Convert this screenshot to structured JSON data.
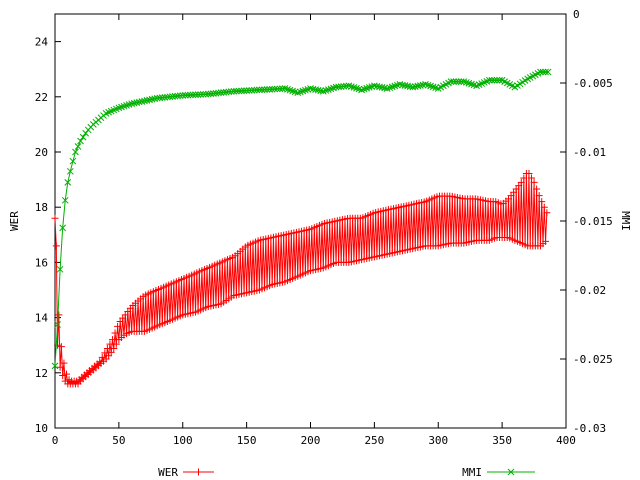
{
  "chart_data": {
    "type": "line",
    "title": "",
    "xlabel": "",
    "ylabel": "WER",
    "y2label": "MMI",
    "xlim": [
      0,
      400
    ],
    "ylim": [
      10,
      25
    ],
    "y2lim": [
      -0.03,
      0
    ],
    "x_ticks": [
      0,
      50,
      100,
      150,
      200,
      250,
      300,
      350,
      400
    ],
    "y_ticks": [
      10,
      12,
      14,
      16,
      18,
      20,
      22,
      24
    ],
    "y2_ticks": [
      -0.03,
      -0.025,
      -0.02,
      -0.015,
      -0.01,
      -0.005,
      0
    ],
    "y2_tick_labels": [
      "-0.03",
      "-0.025",
      "-0.02",
      "-0.015",
      "-0.01",
      "-0.005",
      "0"
    ],
    "grid": false,
    "legend": "bottom",
    "series": [
      {
        "name": "WER",
        "axis": "left",
        "color": "#ff0000",
        "marker": "plus",
        "x": [
          0,
          1,
          2,
          3,
          4,
          6,
          8,
          10,
          12,
          15,
          18,
          20,
          25,
          30,
          35,
          40,
          45,
          50,
          55,
          60,
          70,
          80,
          90,
          100,
          110,
          120,
          130,
          140,
          150,
          160,
          170,
          180,
          190,
          200,
          210,
          220,
          230,
          240,
          250,
          260,
          270,
          280,
          290,
          300,
          310,
          320,
          330,
          340,
          345,
          350,
          355,
          360,
          365,
          370,
          375,
          380,
          385
        ],
        "low": [
          17.6,
          14.0,
          13.0,
          12.6,
          12.2,
          11.9,
          11.7,
          11.6,
          11.6,
          11.6,
          11.6,
          11.7,
          11.9,
          12.1,
          12.3,
          12.5,
          12.8,
          13.2,
          13.4,
          13.5,
          13.5,
          13.7,
          13.9,
          14.1,
          14.2,
          14.4,
          14.5,
          14.8,
          14.9,
          15.0,
          15.2,
          15.3,
          15.5,
          15.7,
          15.8,
          16.0,
          16.0,
          16.1,
          16.2,
          16.3,
          16.4,
          16.5,
          16.6,
          16.6,
          16.7,
          16.7,
          16.8,
          16.8,
          16.9,
          16.9,
          16.9,
          16.8,
          16.7,
          16.6,
          16.6,
          16.6,
          16.8
        ],
        "high": [
          17.6,
          16.6,
          15.2,
          14.1,
          13.3,
          12.6,
          12.1,
          11.8,
          11.7,
          11.7,
          11.7,
          11.8,
          12.0,
          12.2,
          12.4,
          12.8,
          13.2,
          13.8,
          14.1,
          14.4,
          14.8,
          15.0,
          15.2,
          15.4,
          15.6,
          15.8,
          16.0,
          16.2,
          16.6,
          16.8,
          16.9,
          17.0,
          17.1,
          17.2,
          17.4,
          17.5,
          17.6,
          17.6,
          17.8,
          17.9,
          18.0,
          18.1,
          18.2,
          18.4,
          18.4,
          18.3,
          18.3,
          18.2,
          18.2,
          18.1,
          18.3,
          18.6,
          18.9,
          19.3,
          18.9,
          18.3,
          17.8
        ]
      },
      {
        "name": "MMI",
        "axis": "right",
        "color": "#00b000",
        "marker": "cross",
        "x": [
          0,
          2,
          4,
          6,
          8,
          10,
          13,
          16,
          20,
          25,
          30,
          35,
          40,
          50,
          60,
          70,
          80,
          90,
          100,
          120,
          140,
          160,
          180,
          190,
          200,
          210,
          220,
          230,
          240,
          250,
          260,
          270,
          280,
          290,
          300,
          310,
          320,
          330,
          340,
          350,
          360,
          370,
          380,
          387
        ],
        "y": [
          -0.0255,
          -0.0225,
          -0.0185,
          -0.0155,
          -0.0135,
          -0.0122,
          -0.011,
          -0.01,
          -0.0092,
          -0.0085,
          -0.008,
          -0.0076,
          -0.0072,
          -0.0068,
          -0.0065,
          -0.0063,
          -0.0061,
          -0.006,
          -0.0059,
          -0.0058,
          -0.0056,
          -0.0055,
          -0.0054,
          -0.0057,
          -0.0054,
          -0.0056,
          -0.0053,
          -0.0052,
          -0.0055,
          -0.0052,
          -0.0054,
          -0.0051,
          -0.0053,
          -0.0051,
          -0.0054,
          -0.0049,
          -0.0049,
          -0.0052,
          -0.0048,
          -0.0048,
          -0.0053,
          -0.0047,
          -0.0042,
          -0.0042
        ]
      }
    ]
  }
}
